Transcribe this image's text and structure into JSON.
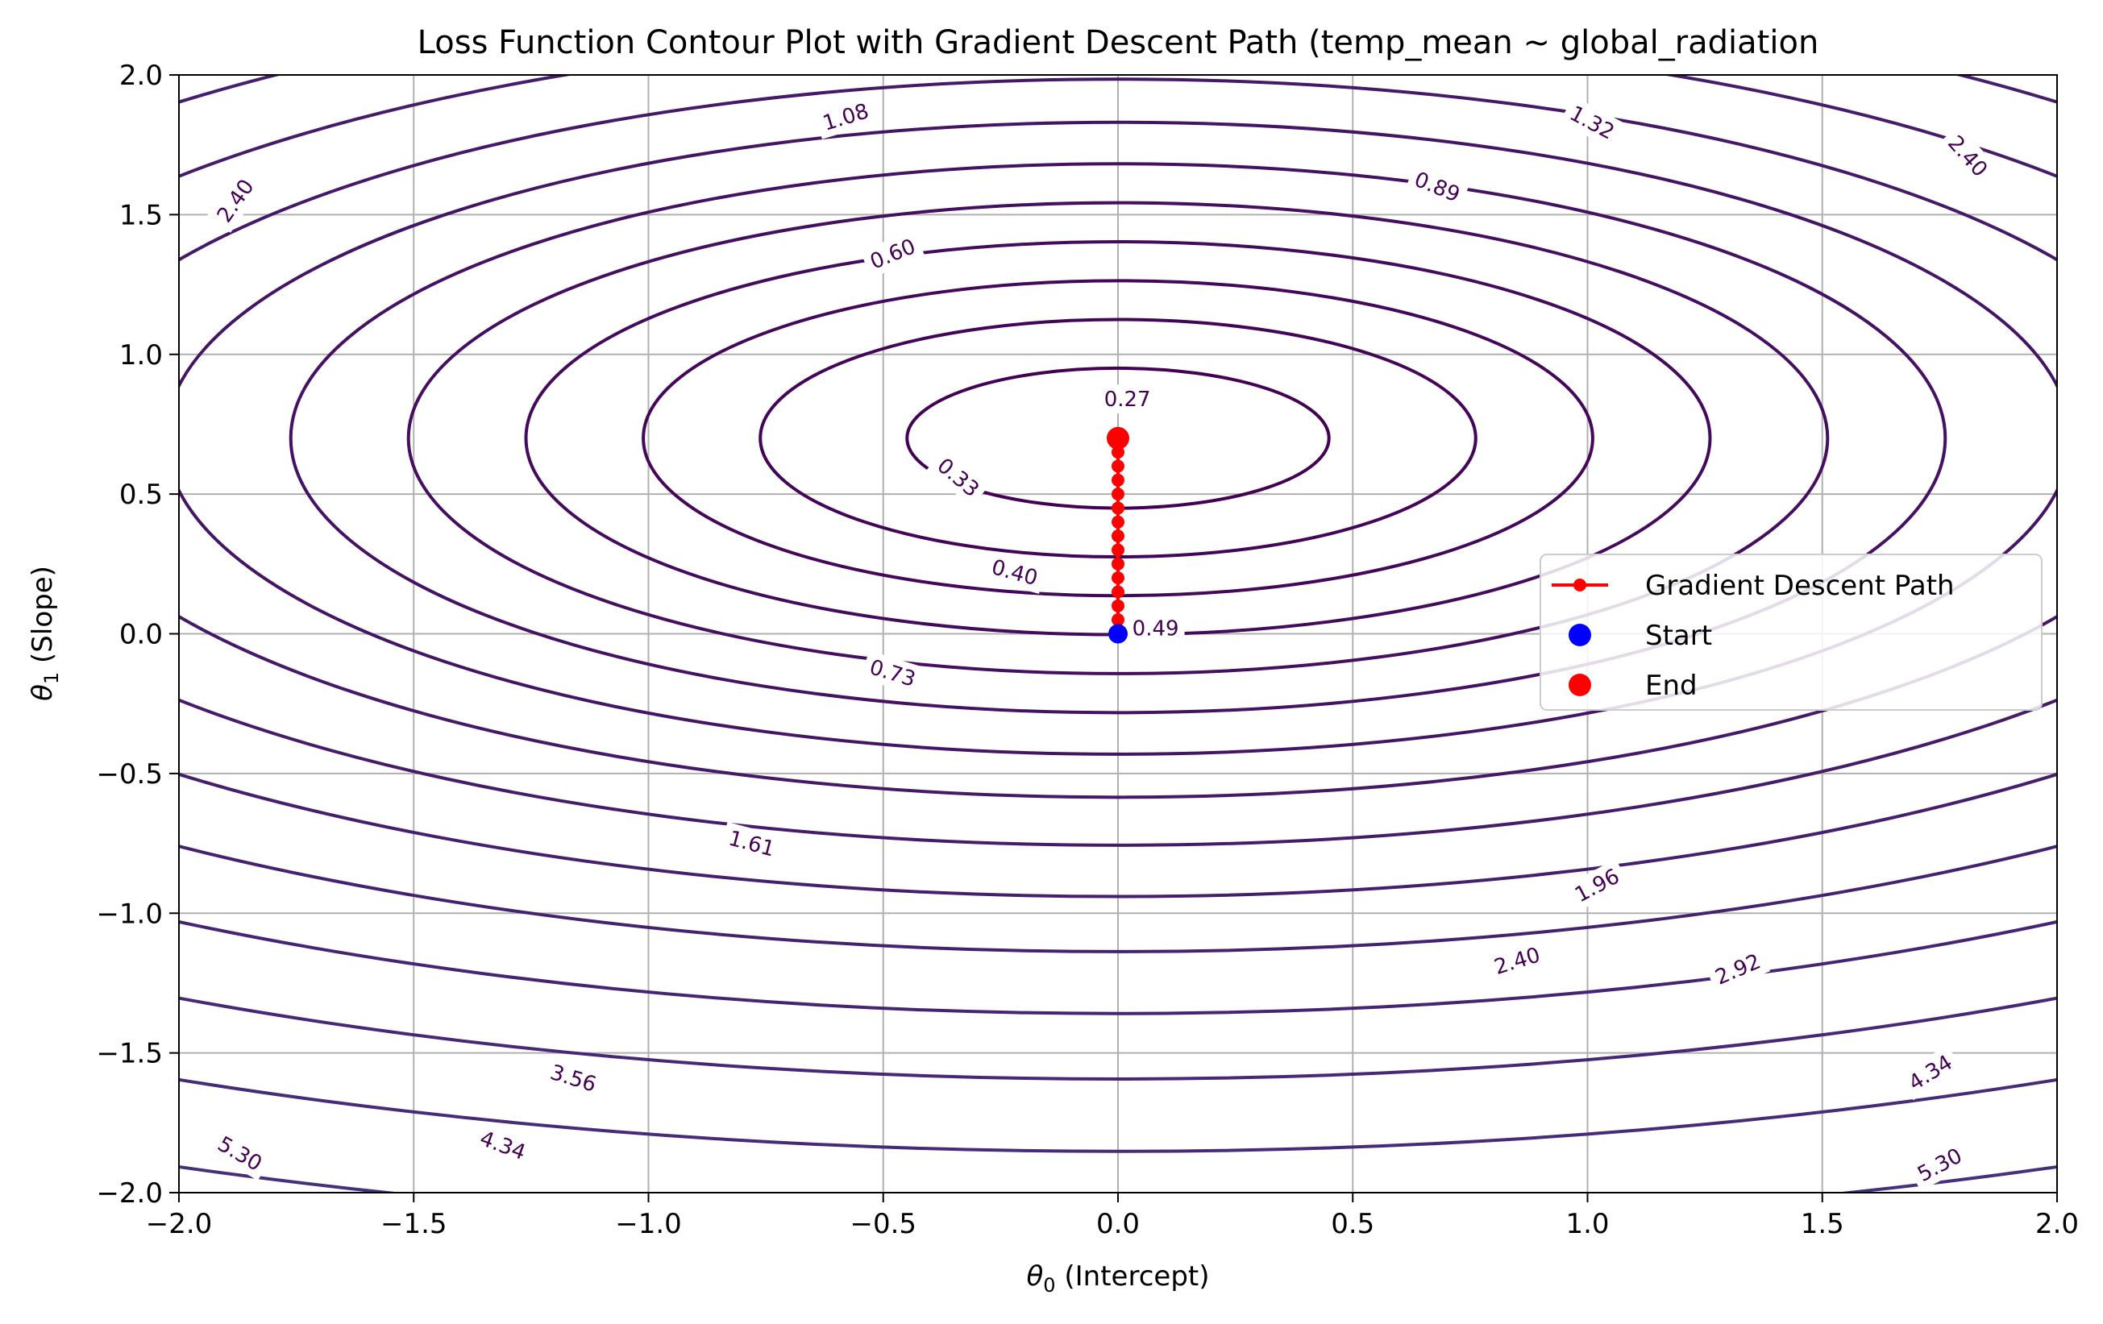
{
  "chart_data": {
    "type": "contour",
    "title": "Loss Function Contour Plot with Gradient Descent Path (temp_mean ~ global_radiation",
    "xlabel": {
      "symbol": "θ",
      "sub": "0",
      "text": " (Intercept)"
    },
    "ylabel": {
      "symbol": "θ",
      "sub": "1",
      "text": " (Slope)"
    },
    "xlim": [
      -2.0,
      2.0
    ],
    "ylim": [
      -2.0,
      2.0
    ],
    "xticks": [
      -2.0,
      -1.5,
      -1.0,
      -0.5,
      0.0,
      0.5,
      1.0,
      1.5,
      2.0
    ],
    "yticks": [
      -2.0,
      -1.5,
      -1.0,
      -0.5,
      0.0,
      0.5,
      1.0,
      1.5,
      2.0
    ],
    "xtick_labels": [
      "−2.0",
      "−1.5",
      "−1.0",
      "−0.5",
      "0.0",
      "0.5",
      "1.0",
      "1.5",
      "2.0"
    ],
    "ytick_labels": [
      "−2.0",
      "−1.5",
      "−1.0",
      "−0.5",
      "0.0",
      "0.5",
      "1.0",
      "1.5",
      "2.0"
    ],
    "grid": true,
    "loss_model": {
      "center": [
        0.0,
        0.7
      ],
      "a": 0.1585,
      "b": 0.51,
      "c": 0.238
    },
    "contour_levels": [
      0.27,
      0.33,
      0.4,
      0.49,
      0.6,
      0.73,
      0.89,
      1.08,
      1.32,
      1.61,
      1.96,
      2.4,
      2.92,
      3.56,
      4.34,
      5.3
    ],
    "contour_colors": {
      "low": "#440154",
      "high": "#46327e"
    },
    "contour_labels": [
      {
        "text": "0.27",
        "x": 0.02,
        "y": 0.84,
        "angle": 0
      },
      {
        "text": "0.33",
        "x": -0.34,
        "y": 0.56,
        "angle": 40
      },
      {
        "text": "0.40",
        "x": -0.22,
        "y": 0.22,
        "angle": 15
      },
      {
        "text": "0.49",
        "x": 0.08,
        "y": 0.02,
        "angle": 0
      },
      {
        "text": "0.60",
        "x": -0.48,
        "y": 1.36,
        "angle": -22
      },
      {
        "text": "0.73",
        "x": -0.48,
        "y": -0.14,
        "angle": 17
      },
      {
        "text": "0.89",
        "x": 0.68,
        "y": 1.6,
        "angle": 22
      },
      {
        "text": "1.08",
        "x": -0.58,
        "y": 1.85,
        "angle": -17
      },
      {
        "text": "1.32",
        "x": 1.01,
        "y": 1.83,
        "angle": 28
      },
      {
        "text": "1.61",
        "x": -0.78,
        "y": -0.75,
        "angle": 15
      },
      {
        "text": "1.96",
        "x": 1.02,
        "y": -0.9,
        "angle": -28
      },
      {
        "text": "2.40",
        "x": -1.88,
        "y": 1.55,
        "angle": -55
      },
      {
        "text": "2.40",
        "x": 1.81,
        "y": 1.71,
        "angle": 48
      },
      {
        "text": "2.40",
        "x": 0.85,
        "y": -1.17,
        "angle": -17
      },
      {
        "text": "2.92",
        "x": 1.32,
        "y": -1.2,
        "angle": -23
      },
      {
        "text": "3.56",
        "x": -1.16,
        "y": -1.59,
        "angle": 17
      },
      {
        "text": "4.34",
        "x": -1.31,
        "y": -1.83,
        "angle": 20
      },
      {
        "text": "4.34",
        "x": 1.73,
        "y": -1.57,
        "angle": -32
      },
      {
        "text": "5.30",
        "x": -1.87,
        "y": -1.86,
        "angle": 30
      },
      {
        "text": "5.30",
        "x": 1.75,
        "y": -1.9,
        "angle": -28
      }
    ],
    "series": [
      {
        "name": "Gradient Descent Path",
        "color": "#ff0000",
        "x": [
          0.0,
          0.0,
          0.0,
          0.0,
          0.0,
          0.0,
          0.0,
          0.0,
          0.0,
          0.0,
          0.0,
          0.0,
          0.0,
          0.0,
          0.0
        ],
        "y": [
          0.0,
          0.05,
          0.1,
          0.15,
          0.2,
          0.25,
          0.3,
          0.35,
          0.4,
          0.45,
          0.5,
          0.55,
          0.6,
          0.65,
          0.7
        ]
      },
      {
        "name": "Start",
        "color": "#0000ff",
        "x": [
          0.0
        ],
        "y": [
          0.0
        ]
      },
      {
        "name": "End",
        "color": "#ff0000",
        "x": [
          0.0
        ],
        "y": [
          0.7
        ]
      }
    ],
    "legend": {
      "placement": "center-right",
      "entries": [
        {
          "label": "Gradient Descent Path",
          "marker": "line",
          "color": "#ff0000"
        },
        {
          "label": "Start",
          "marker": "dot",
          "color": "#0000ff"
        },
        {
          "label": "End",
          "marker": "dot",
          "color": "#ff0000"
        }
      ]
    }
  }
}
